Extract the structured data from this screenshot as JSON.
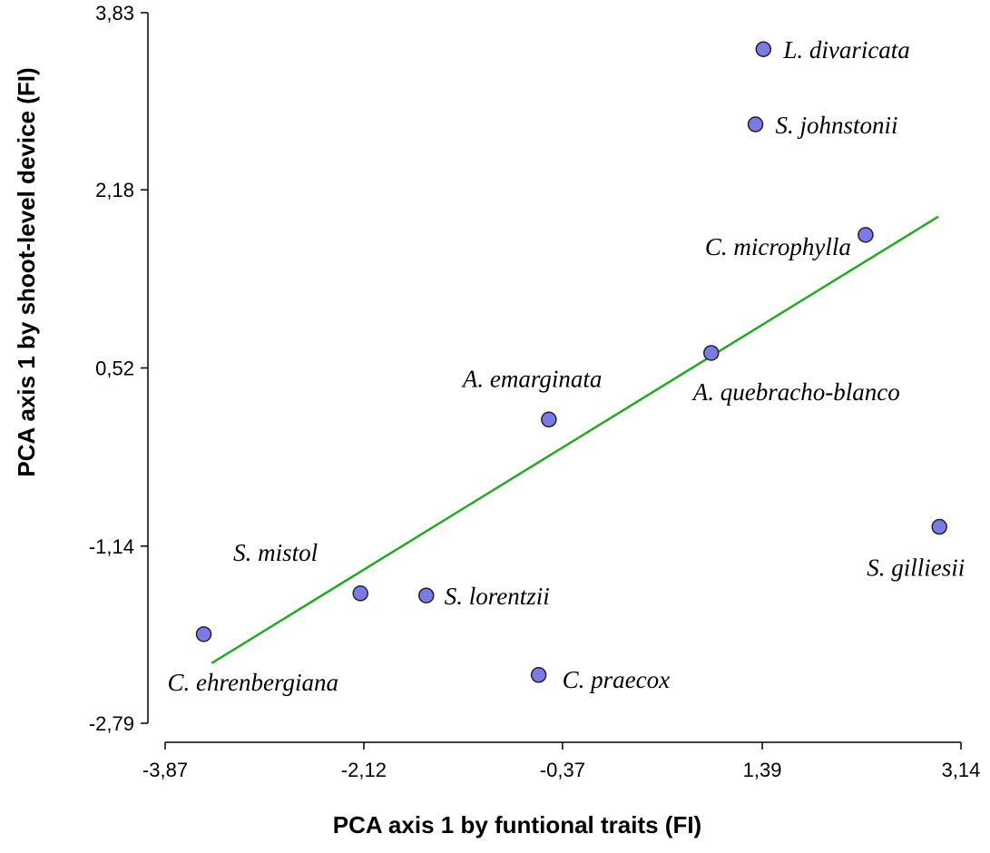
{
  "chart_data": {
    "type": "scatter",
    "title": "",
    "xlabel": "PCA  axis 1 by funtional traits (FI)",
    "ylabel": "PCA axis 1 by shoot-level device  (FI)",
    "xlim": [
      -3.87,
      3.14
    ],
    "ylim": [
      -2.79,
      3.83
    ],
    "xticks": [
      "-3,87",
      "-2,12",
      "-0,37",
      "1,39",
      "3,14"
    ],
    "xtick_values": [
      -3.87,
      -2.12,
      -0.37,
      1.39,
      3.14
    ],
    "yticks": [
      "3,83",
      "2,18",
      "0,52",
      "-1,14",
      "-2,79"
    ],
    "ytick_values": [
      3.83,
      2.18,
      0.52,
      -1.14,
      -2.79
    ],
    "grid": false,
    "points": [
      {
        "label": "L. divaricata",
        "x": 1.4,
        "y": 3.49
      },
      {
        "label": "S. johnstonii",
        "x": 1.33,
        "y": 2.79
      },
      {
        "label": "C. microphylla",
        "x": 2.3,
        "y": 1.76
      },
      {
        "label": "A. quebracho-blanco",
        "x": 0.94,
        "y": 0.66
      },
      {
        "label": "A. emarginata",
        "x": -0.49,
        "y": 0.04
      },
      {
        "label": "S. gilliesii",
        "x": 2.95,
        "y": -0.96
      },
      {
        "label": "S. mistol",
        "x": -2.15,
        "y": -1.58
      },
      {
        "label": "S. lorentzii",
        "x": -1.57,
        "y": -1.6
      },
      {
        "label": "C. ehrenbergiana",
        "x": -3.53,
        "y": -1.96
      },
      {
        "label": "C. praecox",
        "x": -0.58,
        "y": -2.34
      }
    ],
    "regression_line": {
      "x": [
        -3.46,
        2.94
      ],
      "y": [
        -2.23,
        1.93
      ],
      "color": "#22aa22"
    },
    "point_color": "#7b7be8"
  }
}
